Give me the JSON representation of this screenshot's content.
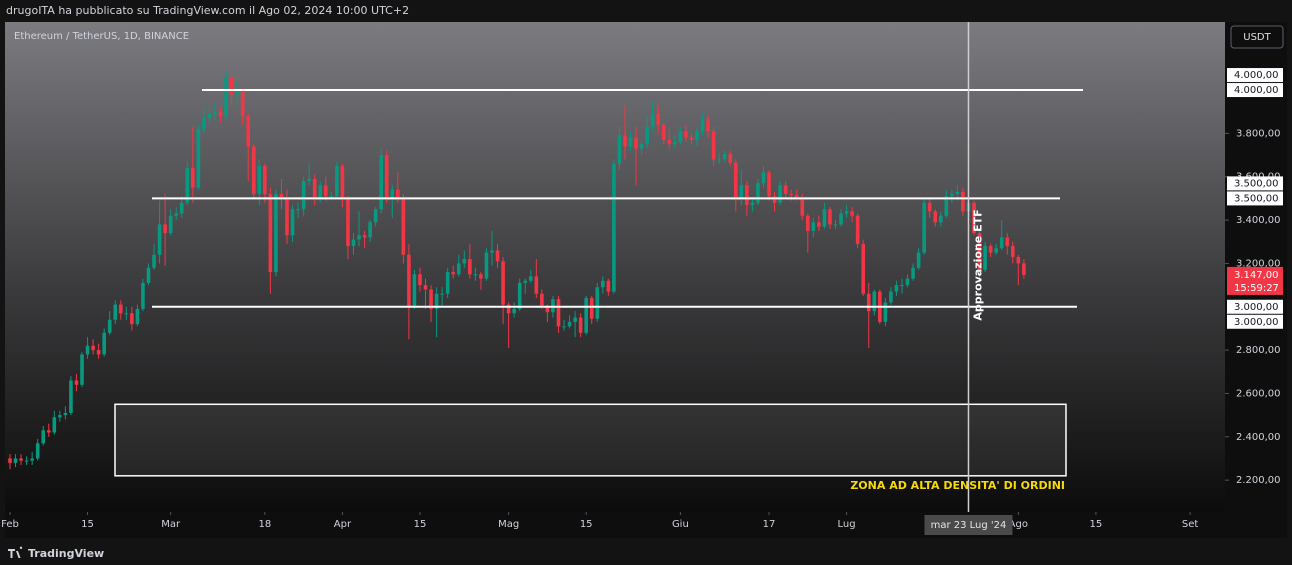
{
  "header": {
    "author_line": "drugoITA ha pubblicato su TradingView.com il Ago 02, 2024 10:00 UTC+2"
  },
  "footer": {
    "brand": "TradingView"
  },
  "chart_data": {
    "type": "candlestick",
    "title": "Ethereum / TetherUS, 1D, BINANCE",
    "currency": "USDT",
    "up_color": "#089981",
    "down_color": "#f23645",
    "open": [
      2300,
      2280,
      2300,
      2290,
      2290,
      2300,
      2370,
      2430,
      2420,
      2490,
      2500,
      2510,
      2660,
      2640,
      2780,
      2820,
      2800,
      2780,
      2880,
      2940,
      3010,
      2970,
      2970,
      2920,
      2990,
      3110,
      3180,
      3240,
      3380,
      3340,
      3420,
      3430,
      3480,
      3640,
      3550,
      3820,
      3870,
      3890,
      3900,
      3880,
      4060,
      3980,
      4000,
      3880,
      3740,
      3520,
      3650,
      3520,
      3160,
      3520,
      3500,
      3330,
      3450,
      3450,
      3580,
      3590,
      3500,
      3560,
      3510,
      3510,
      3650,
      3500,
      3280,
      3310,
      3330,
      3320,
      3390,
      3450,
      3700,
      3500,
      3540,
      3500,
      3240,
      3000,
      3150,
      3100,
      3080,
      2990,
      3060,
      3060,
      3160,
      3150,
      3200,
      3220,
      3150,
      3150,
      3130,
      3250,
      3260,
      3210,
      3010,
      2970,
      2990,
      3110,
      3120,
      3140,
      3060,
      3000,
      2975,
      3035,
      2910,
      2910,
      2930,
      2950,
      2880,
      3040,
      2945,
      3090,
      3120,
      3070,
      3660,
      3790,
      3740,
      3780,
      3730,
      3750,
      3830,
      3890,
      3840,
      3770,
      3750,
      3760,
      3810,
      3780,
      3770,
      3810,
      3865,
      3810,
      3680,
      3680,
      3705,
      3665,
      3500,
      3560,
      3470,
      3480,
      3570,
      3620,
      3510,
      3480,
      3560,
      3520,
      3515,
      3500,
      3420,
      3350,
      3390,
      3370,
      3450,
      3380,
      3380,
      3430,
      3440,
      3420,
      3290,
      3060,
      2980,
      3070,
      2930,
      3020,
      3070,
      3100,
      3100,
      3130,
      3180,
      3250,
      3480,
      3440,
      3390,
      3420,
      3510,
      3520,
      3530,
      3440,
      3480,
      3340,
      3170,
      3280,
      3250,
      3270,
      3320,
      3280,
      3230,
      3200
    ],
    "high": [
      2320,
      2320,
      2320,
      2310,
      2330,
      2390,
      2450,
      2460,
      2520,
      2520,
      2540,
      2680,
      2690,
      2790,
      2860,
      2850,
      2830,
      2900,
      2980,
      3030,
      3030,
      3000,
      3000,
      3010,
      3130,
      3200,
      3290,
      3490,
      3520,
      3450,
      3460,
      3510,
      3670,
      3830,
      3840,
      3930,
      3930,
      3940,
      3920,
      4090,
      4090,
      4040,
      4010,
      3890,
      3750,
      3680,
      3660,
      3550,
      3540,
      3590,
      3540,
      3470,
      3480,
      3600,
      3660,
      3610,
      3580,
      3600,
      3530,
      3670,
      3660,
      3510,
      3340,
      3440,
      3350,
      3400,
      3460,
      3730,
      3720,
      3560,
      3620,
      3520,
      3290,
      3170,
      3180,
      3130,
      3100,
      3090,
      3090,
      3180,
      3190,
      3240,
      3260,
      3290,
      3180,
      3160,
      3270,
      3350,
      3290,
      3230,
      3020,
      3020,
      3130,
      3130,
      3170,
      3220,
      3080,
      3010,
      3050,
      3050,
      2940,
      2960,
      2980,
      2970,
      3050,
      3050,
      3110,
      3140,
      3130,
      3680,
      3830,
      3930,
      3810,
      3830,
      3770,
      3880,
      3950,
      3930,
      3850,
      3820,
      3790,
      3830,
      3840,
      3800,
      3830,
      3890,
      3880,
      3830,
      3710,
      3720,
      3720,
      3680,
      3630,
      3580,
      3500,
      3590,
      3650,
      3630,
      3530,
      3580,
      3580,
      3540,
      3540,
      3520,
      3430,
      3410,
      3420,
      3480,
      3460,
      3400,
      3450,
      3470,
      3460,
      3430,
      3310,
      3110,
      3080,
      3080,
      3040,
      3090,
      3120,
      3130,
      3150,
      3200,
      3270,
      3500,
      3500,
      3450,
      3440,
      3540,
      3540,
      3560,
      3550,
      3510,
      3490,
      3350,
      3300,
      3290,
      3290,
      3400,
      3340,
      3300,
      3240,
      3220
    ],
    "low": [
      2250,
      2260,
      2270,
      2270,
      2270,
      2290,
      2360,
      2400,
      2410,
      2470,
      2480,
      2500,
      2610,
      2630,
      2760,
      2780,
      2760,
      2770,
      2870,
      2920,
      2940,
      2940,
      2890,
      2910,
      2980,
      3100,
      3170,
      3200,
      3190,
      3330,
      3400,
      3410,
      3470,
      3480,
      3540,
      3800,
      3840,
      3860,
      3850,
      3860,
      3930,
      3930,
      3840,
      3580,
      3500,
      3470,
      3480,
      3060,
      3140,
      3450,
      3290,
      3300,
      3410,
      3420,
      3560,
      3470,
      3480,
      3490,
      3490,
      3500,
      3460,
      3220,
      3240,
      3280,
      3270,
      3300,
      3370,
      3430,
      3480,
      3410,
      3480,
      3200,
      2850,
      2990,
      3070,
      2990,
      2930,
      2860,
      3000,
      3040,
      3130,
      3140,
      3180,
      3130,
      3120,
      3080,
      3120,
      3190,
      3180,
      2920,
      2810,
      2950,
      2980,
      3060,
      3110,
      3040,
      2990,
      2930,
      2950,
      2880,
      2890,
      2900,
      2860,
      2860,
      2870,
      2920,
      2930,
      3060,
      3050,
      3060,
      3630,
      3680,
      3720,
      3560,
      3700,
      3730,
      3810,
      3800,
      3750,
      3730,
      3730,
      3750,
      3760,
      3750,
      3740,
      3790,
      3780,
      3650,
      3660,
      3670,
      3650,
      3440,
      3470,
      3420,
      3440,
      3470,
      3550,
      3490,
      3440,
      3470,
      3500,
      3490,
      3490,
      3400,
      3250,
      3320,
      3350,
      3360,
      3360,
      3360,
      3370,
      3410,
      3390,
      3270,
      3050,
      2810,
      2960,
      2920,
      2910,
      3010,
      3050,
      3060,
      3090,
      3120,
      3170,
      3240,
      3410,
      3370,
      3370,
      3410,
      3480,
      3490,
      3420,
      3420,
      3330,
      3110,
      3160,
      3230,
      3240,
      3260,
      3240,
      3200,
      3100,
      3130
    ],
    "close": [
      2280,
      2300,
      2290,
      2290,
      2300,
      2370,
      2430,
      2420,
      2490,
      2500,
      2510,
      2660,
      2640,
      2780,
      2820,
      2800,
      2780,
      2880,
      2940,
      3010,
      2970,
      2970,
      2920,
      2990,
      3110,
      3180,
      3240,
      3380,
      3340,
      3420,
      3430,
      3480,
      3640,
      3550,
      3820,
      3870,
      3890,
      3900,
      3880,
      4060,
      3980,
      4000,
      3880,
      3740,
      3520,
      3650,
      3520,
      3160,
      3520,
      3500,
      3330,
      3450,
      3450,
      3580,
      3590,
      3500,
      3560,
      3510,
      3510,
      3650,
      3500,
      3280,
      3310,
      3330,
      3320,
      3390,
      3450,
      3700,
      3500,
      3540,
      3500,
      3240,
      3000,
      3150,
      3100,
      3080,
      2990,
      3060,
      3060,
      3160,
      3150,
      3200,
      3220,
      3150,
      3150,
      3130,
      3250,
      3260,
      3210,
      3010,
      2970,
      2990,
      3110,
      3120,
      3140,
      3060,
      3000,
      2975,
      3035,
      2910,
      2910,
      2930,
      2950,
      2880,
      3040,
      2945,
      3090,
      3120,
      3070,
      3660,
      3790,
      3740,
      3780,
      3730,
      3750,
      3830,
      3890,
      3840,
      3770,
      3750,
      3760,
      3810,
      3780,
      3770,
      3810,
      3865,
      3810,
      3680,
      3680,
      3705,
      3665,
      3500,
      3560,
      3470,
      3480,
      3570,
      3620,
      3510,
      3480,
      3560,
      3520,
      3515,
      3500,
      3420,
      3350,
      3390,
      3370,
      3450,
      3380,
      3380,
      3430,
      3440,
      3420,
      3290,
      3060,
      2980,
      3070,
      2930,
      3020,
      3070,
      3100,
      3100,
      3130,
      3180,
      3250,
      3480,
      3440,
      3390,
      3420,
      3510,
      3520,
      3530,
      3440,
      3480,
      3340,
      3170,
      3280,
      3250,
      3270,
      3320,
      3280,
      3230,
      3200,
      3147
    ],
    "xlim": [
      -0.9,
      219.3
    ],
    "xticks": [
      {
        "value": 0,
        "label": "Feb"
      },
      {
        "value": 14,
        "label": "15"
      },
      {
        "value": 29,
        "label": "Mar"
      },
      {
        "value": 46,
        "label": "18"
      },
      {
        "value": 60,
        "label": "Apr"
      },
      {
        "value": 74,
        "label": "15"
      },
      {
        "value": 90,
        "label": "Mag"
      },
      {
        "value": 104,
        "label": "15"
      },
      {
        "value": 121,
        "label": "Giu"
      },
      {
        "value": 137,
        "label": "17"
      },
      {
        "value": 151,
        "label": "Lug"
      },
      {
        "value": 182,
        "label": "Ago"
      },
      {
        "value": 196,
        "label": "15"
      },
      {
        "value": 213,
        "label": "Set"
      }
    ],
    "ylim": [
      2053,
      4314
    ],
    "yticks": [
      {
        "value": 2200,
        "label": "2.200,00"
      },
      {
        "value": 2400,
        "label": "2.400,00"
      },
      {
        "value": 2600,
        "label": "2.600,00"
      },
      {
        "value": 2800,
        "label": "2.800,00"
      },
      {
        "value": 3200,
        "label": "3.200,00"
      },
      {
        "value": 3400,
        "label": "3.400,00"
      },
      {
        "value": 3600,
        "label": "3.600,00"
      },
      {
        "value": 3800,
        "label": "3.800,00"
      }
    ],
    "levels": [
      {
        "value": 4000,
        "labels": [
          "4.000,00",
          "4.000,00"
        ]
      },
      {
        "value": 3500,
        "labels": [
          "3.500,00",
          "3.500,00"
        ]
      },
      {
        "value": 3000,
        "labels": [
          "3.000,00",
          "3.000,00"
        ]
      }
    ],
    "zone": {
      "low": 2220,
      "high": 2550,
      "label": "ZONA AD ALTA DENSITA' DI ORDINI"
    },
    "event": {
      "x": 173,
      "label": "Approvazione ETF",
      "date_label": "mar 23 Lug '24"
    },
    "last_price": {
      "value": 3147,
      "label": "3.147,00",
      "countdown": "15:59:27"
    }
  }
}
